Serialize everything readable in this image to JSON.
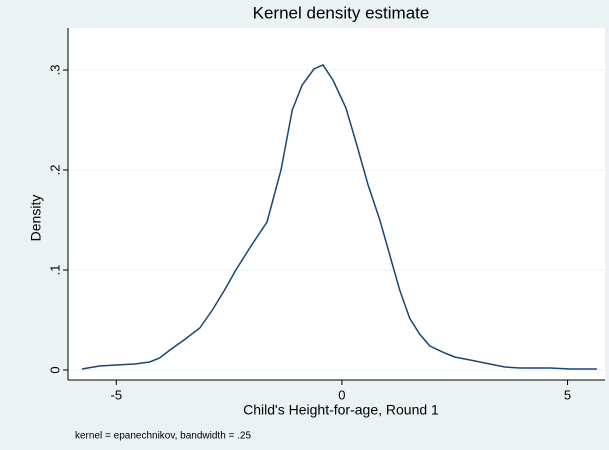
{
  "chart_data": {
    "type": "line",
    "title": "Kernel density estimate",
    "xlabel": "Child's Height-for-age, Round 1",
    "ylabel": "Density",
    "note": "kernel = epanechnikov, bandwidth = .25",
    "x": [
      -5.76,
      -5.37,
      -5.01,
      -4.59,
      -4.26,
      -4.04,
      -3.81,
      -3.5,
      -3.15,
      -2.87,
      -2.6,
      -2.35,
      -2.0,
      -1.66,
      -1.35,
      -1.1,
      -0.88,
      -0.62,
      -0.42,
      -0.2,
      0.09,
      0.33,
      0.58,
      0.84,
      1.06,
      1.28,
      1.5,
      1.72,
      1.95,
      2.28,
      2.5,
      2.84,
      3.28,
      3.61,
      3.95,
      4.62,
      5.06,
      5.39,
      5.65
    ],
    "series": [
      {
        "color": "#1a476f",
        "values": [
          0.001,
          0.004,
          0.005,
          0.006,
          0.008,
          0.012,
          0.02,
          0.03,
          0.042,
          0.06,
          0.08,
          0.1,
          0.125,
          0.148,
          0.2,
          0.26,
          0.285,
          0.301,
          0.305,
          0.29,
          0.262,
          0.225,
          0.185,
          0.15,
          0.115,
          0.08,
          0.052,
          0.036,
          0.024,
          0.017,
          0.013,
          0.01,
          0.006,
          0.003,
          0.002,
          0.002,
          0.001,
          0.001,
          0.001
        ]
      }
    ],
    "xlim": [
      -6.07,
      5.83
    ],
    "ylim": [
      -0.01,
      0.342
    ],
    "xticks": [
      -5,
      0,
      5
    ],
    "yticks": [
      0,
      {
        "value": 0.1,
        "label": ".1"
      },
      {
        "value": 0.2,
        "label": ".2"
      },
      {
        "value": 0.3,
        "label": ".3"
      }
    ],
    "grid": true
  }
}
